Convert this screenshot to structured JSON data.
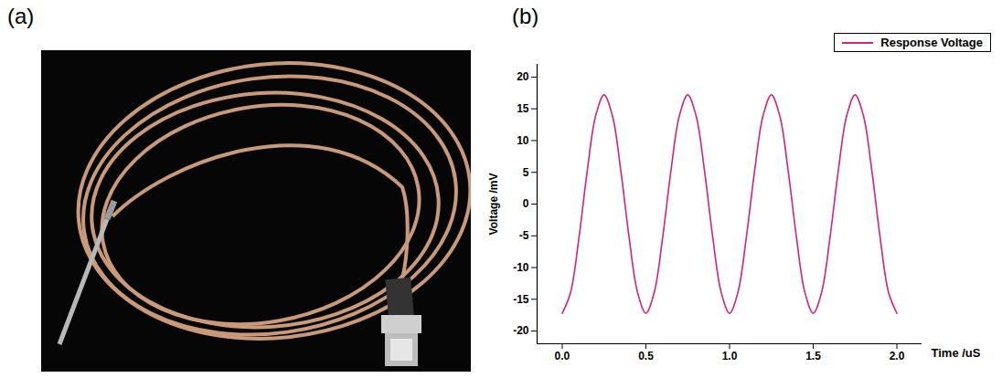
{
  "figure": {
    "panel_labels": [
      "(a)",
      "(b)"
    ]
  },
  "chart_data": {
    "type": "line",
    "x_label": "Time /uS",
    "y_label": "Voltage /mV",
    "legend": "top-right",
    "grid": false,
    "xlim": [
      -0.15,
      2.15
    ],
    "ylim": [
      -22,
      22
    ],
    "xticks": [
      {
        "value": 0,
        "label": "0.0"
      },
      {
        "value": 0.5,
        "label": "0.5"
      },
      {
        "value": 1,
        "label": "1.0"
      },
      {
        "value": 1.5,
        "label": "1.5"
      },
      {
        "value": 2,
        "label": "2.0"
      }
    ],
    "yticks": [
      -20,
      -15,
      -10,
      -5,
      0,
      5,
      10,
      15,
      20
    ],
    "x": [
      0,
      0.05,
      0.1,
      0.15,
      0.2,
      0.25,
      0.3,
      0.35,
      0.4,
      0.45,
      0.5,
      0.55,
      0.6,
      0.65,
      0.7,
      0.75,
      0.8,
      0.85,
      0.9,
      0.95,
      1.0,
      1.05,
      1.1,
      1.15,
      1.2,
      1.25,
      1.3,
      1.35,
      1.4,
      1.45,
      1.5,
      1.55,
      1.6,
      1.65,
      1.7,
      1.75,
      1.8,
      1.85,
      1.9,
      1.95,
      2.0
    ],
    "series": [
      {
        "name": "Response Voltage",
        "color": "#d4237a",
        "values": [
          -17.2,
          -13.9,
          -5.3,
          5.3,
          13.9,
          17.2,
          13.9,
          5.3,
          -5.3,
          -13.9,
          -17.2,
          -13.9,
          -5.3,
          5.3,
          13.9,
          17.2,
          13.9,
          5.3,
          -5.3,
          -13.9,
          -17.2,
          -13.9,
          -5.3,
          5.3,
          13.9,
          17.2,
          13.9,
          5.3,
          -5.3,
          -13.9,
          -17.2,
          -13.9,
          -5.3,
          5.3,
          13.9,
          17.2,
          13.9,
          5.3,
          -5.3,
          -13.9,
          -17.2
        ]
      }
    ]
  }
}
